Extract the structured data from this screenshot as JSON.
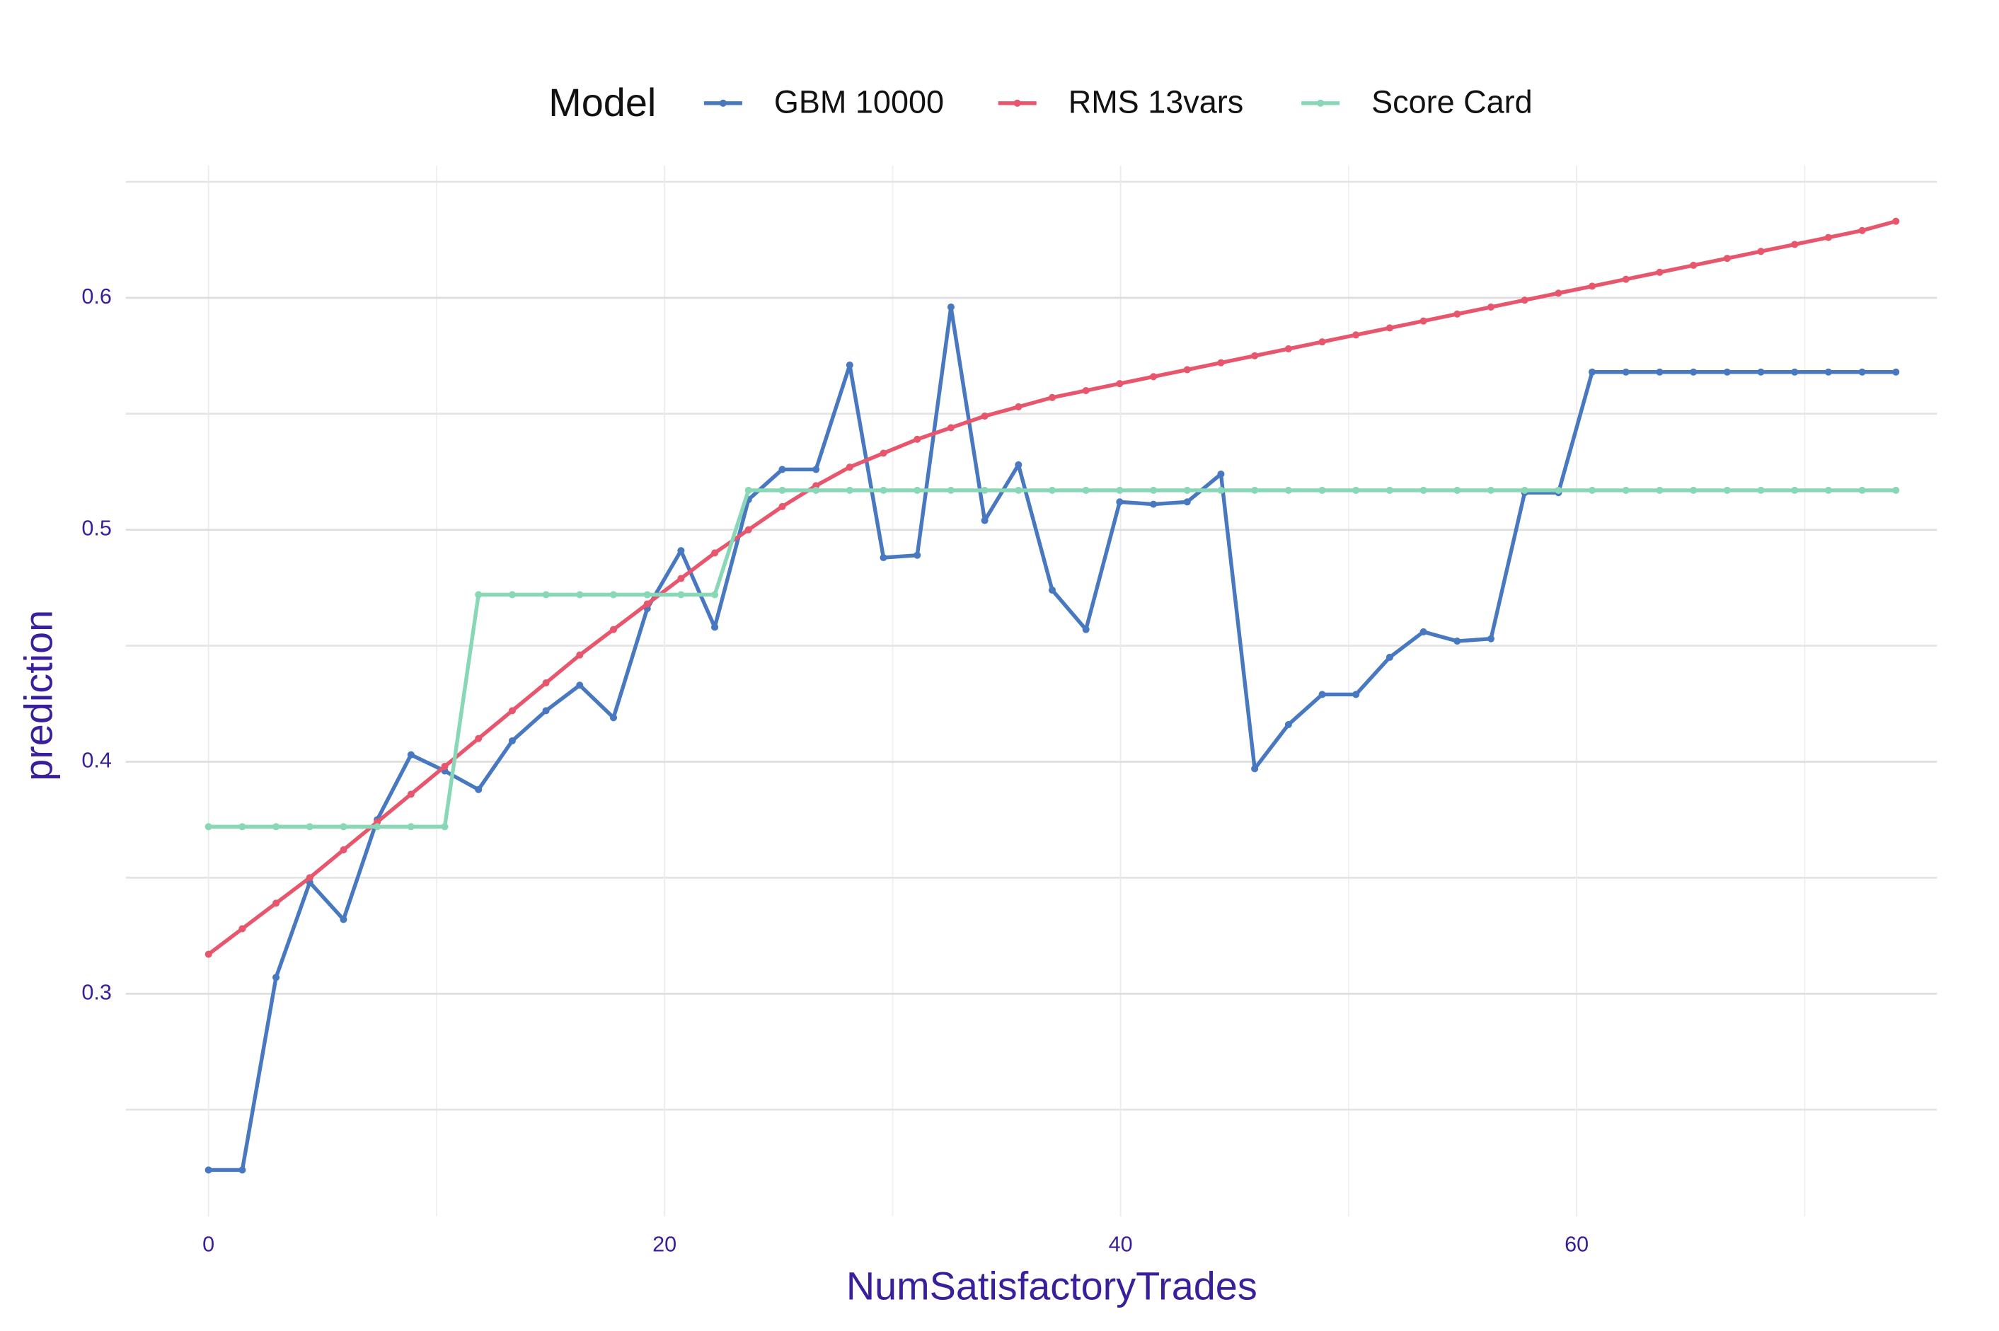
{
  "chart_data": {
    "type": "line",
    "xlabel": "NumSatisfactoryTrades",
    "ylabel": "prediction",
    "legend_title": "Model",
    "legend": "top",
    "x": [
      0,
      1.48,
      2.96,
      4.44,
      5.92,
      7.4,
      8.88,
      10.36,
      11.84,
      13.32,
      14.8,
      16.28,
      17.76,
      19.24,
      20.72,
      22.2,
      23.68,
      25.16,
      26.64,
      28.12,
      29.6,
      31.08,
      32.56,
      34.04,
      35.52,
      37,
      38.48,
      39.96,
      41.44,
      42.92,
      44.4,
      45.88,
      47.36,
      48.84,
      50.32,
      51.8,
      53.28,
      54.76,
      56.24,
      57.72,
      59.2,
      60.68,
      62.16,
      63.64,
      65.12,
      66.6,
      68.08,
      69.56,
      71.04,
      72.52,
      74
    ],
    "series": [
      {
        "name": "GBM 10000",
        "color": "#4878c0",
        "values": [
          0.224,
          0.224,
          0.307,
          0.348,
          0.332,
          0.375,
          0.403,
          0.396,
          0.388,
          0.409,
          0.422,
          0.433,
          0.419,
          0.466,
          0.491,
          0.458,
          0.513,
          0.526,
          0.526,
          0.571,
          0.488,
          0.489,
          0.596,
          0.504,
          0.528,
          0.474,
          0.457,
          0.512,
          0.511,
          0.512,
          0.524,
          0.397,
          0.416,
          0.429,
          0.429,
          0.445,
          0.456,
          0.452,
          0.453,
          0.516,
          0.516,
          0.568,
          0.568,
          0.568,
          0.568,
          0.568,
          0.568,
          0.568,
          0.568,
          0.568,
          0.568
        ]
      },
      {
        "name": "RMS 13vars",
        "color": "#e8566e",
        "values": [
          0.317,
          0.328,
          0.339,
          0.35,
          0.362,
          0.374,
          0.386,
          0.398,
          0.41,
          0.422,
          0.434,
          0.446,
          0.457,
          0.468,
          0.479,
          0.49,
          0.5,
          0.51,
          0.519,
          0.527,
          0.533,
          0.539,
          0.544,
          0.549,
          0.553,
          0.557,
          0.56,
          0.563,
          0.566,
          0.569,
          0.572,
          0.575,
          0.578,
          0.581,
          0.584,
          0.587,
          0.59,
          0.593,
          0.596,
          0.599,
          0.602,
          0.605,
          0.608,
          0.611,
          0.614,
          0.617,
          0.62,
          0.623,
          0.626,
          0.629,
          0.633
        ]
      },
      {
        "name": "Score Card",
        "color": "#88d8b8",
        "values": [
          0.372,
          0.372,
          0.372,
          0.372,
          0.372,
          0.372,
          0.372,
          0.372,
          0.472,
          0.472,
          0.472,
          0.472,
          0.472,
          0.472,
          0.472,
          0.472,
          0.517,
          0.517,
          0.517,
          0.517,
          0.517,
          0.517,
          0.517,
          0.517,
          0.517,
          0.517,
          0.517,
          0.517,
          0.517,
          0.517,
          0.517,
          0.517,
          0.517,
          0.517,
          0.517,
          0.517,
          0.517,
          0.517,
          0.517,
          0.517,
          0.517,
          0.517,
          0.517,
          0.517,
          0.517,
          0.517,
          0.517,
          0.517,
          0.517,
          0.517,
          0.517
        ]
      }
    ],
    "xlim": [
      -3.63,
      75.8
    ],
    "xticks": [
      0,
      20,
      40,
      60
    ],
    "xminor": [
      10,
      30,
      50,
      70
    ],
    "ylim": [
      0.204,
      0.657
    ],
    "yticks": [
      0.3,
      0.4,
      0.5,
      0.6
    ],
    "yminor": [
      0.25,
      0.35,
      0.45,
      0.55,
      0.65
    ],
    "grid": true
  }
}
